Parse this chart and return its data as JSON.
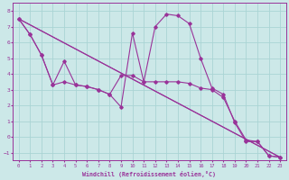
{
  "xlabel": "Windchill (Refroidissement éolien,°C)",
  "xlim": [
    -0.5,
    23.5
  ],
  "ylim": [
    -1.5,
    8.5
  ],
  "xticks": [
    0,
    1,
    2,
    3,
    4,
    5,
    6,
    7,
    8,
    9,
    10,
    11,
    12,
    13,
    14,
    15,
    16,
    17,
    18,
    19,
    20,
    21,
    22,
    23
  ],
  "yticks": [
    -1,
    0,
    1,
    2,
    3,
    4,
    5,
    6,
    7,
    8
  ],
  "bg_color": "#cce8e8",
  "line_color": "#993399",
  "grid_color": "#aad4d4",
  "curve1_x": [
    0,
    1,
    2,
    3,
    4,
    5,
    6,
    7,
    8,
    9,
    10,
    11,
    12,
    13,
    14,
    15,
    16,
    17,
    18,
    19,
    20,
    21,
    22,
    23
  ],
  "curve1_y": [
    7.5,
    6.5,
    5.2,
    3.3,
    4.8,
    3.3,
    3.2,
    3.0,
    2.7,
    1.9,
    6.6,
    3.5,
    7.0,
    7.8,
    7.7,
    7.2,
    5.0,
    3.1,
    2.7,
    0.9,
    -0.3,
    -0.3,
    -1.2,
    -1.3
  ],
  "curve2_x": [
    0,
    1,
    2,
    3,
    4,
    5,
    6,
    7,
    8,
    9,
    10,
    11,
    12,
    13,
    14,
    15,
    16,
    17,
    18,
    19,
    20,
    21,
    22,
    23
  ],
  "curve2_y": [
    7.5,
    6.5,
    5.2,
    3.3,
    3.5,
    3.3,
    3.2,
    3.0,
    2.7,
    3.9,
    3.9,
    3.5,
    3.5,
    3.5,
    3.5,
    3.4,
    3.1,
    3.0,
    2.5,
    1.0,
    -0.2,
    -0.3,
    -1.2,
    -1.3
  ],
  "curve3_x": [
    0,
    23
  ],
  "curve3_y": [
    7.5,
    -1.3
  ],
  "curve4_x": [
    0,
    23
  ],
  "curve4_y": [
    7.5,
    -1.3
  ]
}
